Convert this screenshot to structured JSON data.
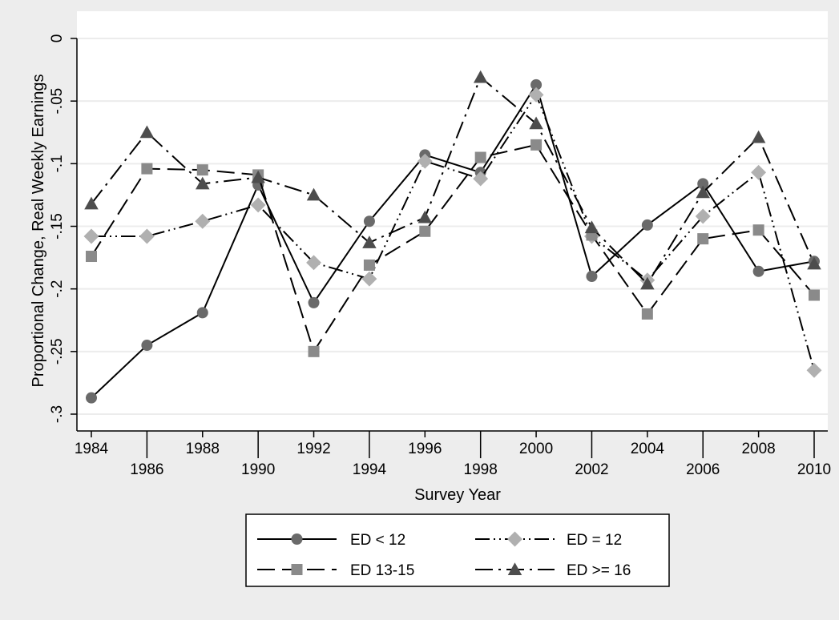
{
  "chart_data": {
    "type": "line",
    "xlabel": "Survey Year",
    "ylabel": "Proportional Change, Real Weekly Earnings",
    "ylim": [
      -0.3,
      0
    ],
    "xlim": [
      1984,
      2010
    ],
    "y_ticks": [
      {
        "value": 0,
        "label": "0"
      },
      {
        "value": -0.05,
        "label": "-.05"
      },
      {
        "value": -0.1,
        "label": "-.1"
      },
      {
        "value": -0.15,
        "label": "-.15"
      },
      {
        "value": -0.2,
        "label": "-.2"
      },
      {
        "value": -0.25,
        "label": "-.25"
      },
      {
        "value": -0.3,
        "label": "-.3"
      }
    ],
    "x_ticks": [
      "1984",
      "1986",
      "1988",
      "1990",
      "1992",
      "1994",
      "1996",
      "1998",
      "2000",
      "2002",
      "2004",
      "2006",
      "2008",
      "2010"
    ],
    "x": [
      1984,
      1986,
      1988,
      1990,
      1992,
      1994,
      1996,
      1998,
      2000,
      2002,
      2004,
      2006,
      2008,
      2010
    ],
    "grid": true,
    "legend_position": "bottom",
    "series": [
      {
        "name": "ED < 12",
        "marker": "circle",
        "color": "#6a6a6a",
        "dash": "solid",
        "values": [
          -0.287,
          -0.245,
          -0.219,
          -0.117,
          -0.211,
          -0.146,
          -0.093,
          -0.107,
          -0.037,
          -0.19,
          -0.149,
          -0.116,
          -0.186,
          -0.178
        ]
      },
      {
        "name": "ED = 12",
        "marker": "diamond",
        "color": "#b0b0b0",
        "dash": "dashdotdot",
        "values": [
          -0.158,
          -0.158,
          -0.146,
          -0.133,
          -0.179,
          -0.192,
          -0.098,
          -0.112,
          -0.045,
          -0.158,
          -0.193,
          -0.142,
          -0.107,
          -0.265
        ]
      },
      {
        "name": "ED 13-15",
        "marker": "square",
        "color": "#8a8a8a",
        "dash": "longdash",
        "values": [
          -0.174,
          -0.104,
          -0.105,
          -0.109,
          -0.25,
          -0.181,
          -0.154,
          -0.095,
          -0.085,
          -0.157,
          -0.22,
          -0.16,
          -0.153,
          -0.205
        ]
      },
      {
        "name": "ED >= 16",
        "marker": "triangle",
        "color": "#4d4d4d",
        "dash": "longdashdot",
        "values": [
          -0.132,
          -0.075,
          -0.116,
          -0.111,
          -0.125,
          -0.163,
          -0.143,
          -0.031,
          -0.068,
          -0.151,
          -0.196,
          -0.123,
          -0.079,
          -0.18
        ]
      }
    ]
  }
}
